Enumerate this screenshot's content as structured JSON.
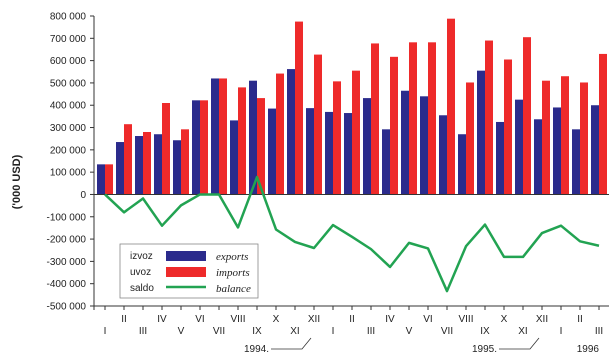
{
  "chart_data": {
    "type": "bar",
    "ylabel": "('000 USD)",
    "ylim": [
      -500000,
      800000
    ],
    "yticks": [
      800000,
      700000,
      600000,
      500000,
      400000,
      300000,
      200000,
      100000,
      0,
      -100000,
      -200000,
      -300000,
      -400000,
      -500000
    ],
    "ytick_labels": [
      "800 000",
      "700 000",
      "600 000",
      "500 000",
      "400 000",
      "300 000",
      "200 000",
      "100 000",
      "0",
      "-100 000",
      "-200 000",
      "-300 000",
      "-400 000",
      "-500 000"
    ],
    "categories": [
      "I",
      "II",
      "III",
      "IV",
      "V",
      "VI",
      "VII",
      "VIII",
      "IX",
      "X",
      "XI",
      "XII",
      "I",
      "II",
      "III",
      "IV",
      "V",
      "VI",
      "VII",
      "VIII",
      "IX",
      "X",
      "XI",
      "XII",
      "I",
      "II",
      "III"
    ],
    "year_labels": [
      {
        "label": "1994.",
        "month_index": 11
      },
      {
        "label": "1995.",
        "month_index": 23
      },
      {
        "label": "1996",
        "month_index": 26
      }
    ],
    "series": [
      {
        "key": "exports",
        "values": [
          135000,
          235000,
          262000,
          270000,
          243000,
          422000,
          520000,
          332000,
          510000,
          385000,
          562000,
          387000,
          370000,
          365000,
          432000,
          292000,
          465000,
          440000,
          355000,
          270000,
          555000,
          325000,
          425000,
          337000,
          390000,
          292000,
          400000
        ]
      },
      {
        "key": "imports",
        "values": [
          135000,
          315000,
          280000,
          410000,
          292000,
          422000,
          520000,
          480000,
          432000,
          542000,
          775000,
          627000,
          507000,
          555000,
          677000,
          617000,
          682000,
          682000,
          788000,
          502000,
          690000,
          605000,
          705000,
          510000,
          530000,
          502000,
          630000
        ]
      },
      {
        "key": "balance",
        "values": [
          0,
          -80000,
          -18000,
          -140000,
          -49000,
          0,
          0,
          -148000,
          78000,
          -157000,
          -213000,
          -240000,
          -137000,
          -190000,
          -245000,
          -325000,
          -217000,
          -242000,
          -433000,
          -232000,
          -135000,
          -280000,
          -280000,
          -173000,
          -140000,
          -210000,
          -230000
        ]
      }
    ],
    "legend": [
      {
        "key": "exports",
        "local_label": "izvoz",
        "label": "exports",
        "color": "#2b2b8c"
      },
      {
        "key": "imports",
        "local_label": "uvoz",
        "label": "imports",
        "color": "#ee2a2a"
      },
      {
        "key": "balance",
        "local_label": "saldo",
        "label": "balance",
        "color": "#22a352"
      }
    ],
    "legend_position": "bottom-left",
    "grid": false
  }
}
